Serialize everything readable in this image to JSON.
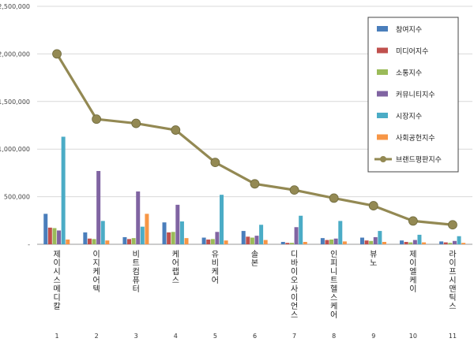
{
  "chart_data": {
    "type": "bar",
    "categories": [
      "제이시스메디칼",
      "이지케어텍",
      "비트컴퓨터",
      "케어랩스",
      "유비케어",
      "솔본",
      "디바이오사이언스",
      "인피니트헬스케어",
      "뷰노",
      "제이엘케이",
      "라이프시맨틱스"
    ],
    "category_numbers": [
      "1",
      "2",
      "3",
      "4",
      "5",
      "6",
      "7",
      "8",
      "9",
      "10",
      "11"
    ],
    "ylim": [
      0,
      2500000
    ],
    "yticks": [
      {
        "value": 0,
        "label": "-"
      },
      {
        "value": 500000,
        "label": "500,000"
      },
      {
        "value": 1000000,
        "label": "1,000,000"
      },
      {
        "value": 1500000,
        "label": "1,500,000"
      },
      {
        "value": 2000000,
        "label": "2,000,000"
      },
      {
        "value": 2500000,
        "label": "2,500,000"
      }
    ],
    "legend_position": "top-right",
    "series": [
      {
        "name": "참여지수",
        "color": "#4a7ebb",
        "values": [
          320000,
          125000,
          75000,
          230000,
          70000,
          140000,
          25000,
          65000,
          70000,
          40000,
          30000
        ]
      },
      {
        "name": "미디어지수",
        "color": "#c0504d",
        "values": [
          175000,
          60000,
          55000,
          125000,
          50000,
          80000,
          15000,
          45000,
          40000,
          25000,
          20000
        ]
      },
      {
        "name": "소통지수",
        "color": "#9bbb59",
        "values": [
          170000,
          55000,
          65000,
          130000,
          55000,
          70000,
          15000,
          50000,
          35000,
          20000,
          15000
        ]
      },
      {
        "name": "커뮤니티지수",
        "color": "#8064a2",
        "values": [
          145000,
          770000,
          555000,
          415000,
          130000,
          90000,
          180000,
          60000,
          75000,
          45000,
          35000
        ]
      },
      {
        "name": "시장지수",
        "color": "#4bacc6",
        "values": [
          1130000,
          245000,
          185000,
          240000,
          520000,
          205000,
          300000,
          245000,
          140000,
          100000,
          85000
        ]
      },
      {
        "name": "사회공헌지수",
        "color": "#f79646",
        "values": [
          50000,
          40000,
          320000,
          65000,
          40000,
          45000,
          25000,
          30000,
          25000,
          20000,
          15000
        ]
      }
    ],
    "line_series": {
      "name": "브랜드평판지수",
      "color": "#938953",
      "values": [
        2000000,
        1315000,
        1270000,
        1200000,
        860000,
        635000,
        570000,
        485000,
        405000,
        245000,
        205000
      ]
    }
  }
}
